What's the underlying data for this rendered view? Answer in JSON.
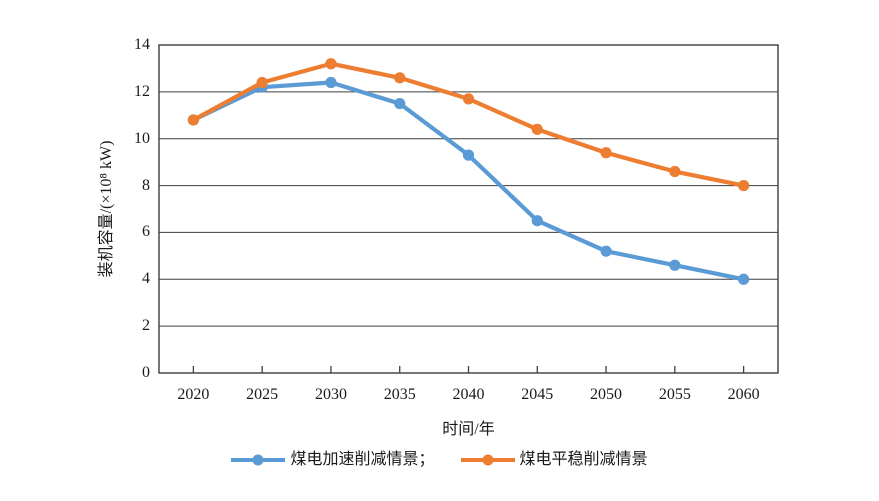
{
  "chart_data": {
    "type": "line",
    "title": "",
    "xlabel": "时间/年",
    "ylabel": "装机容量/(×10⁸ kW)",
    "categories": [
      "2020",
      "2025",
      "2030",
      "2035",
      "2040",
      "2045",
      "2050",
      "2055",
      "2060"
    ],
    "yticks": [
      0,
      2,
      4,
      6,
      8,
      10,
      12,
      14
    ],
    "ylim": [
      0,
      14
    ],
    "grid": "horizontal",
    "legend_position": "bottom",
    "series": [
      {
        "name": "煤电加速削减情景；",
        "color": "#5B9BD5",
        "values": [
          10.8,
          12.2,
          12.4,
          11.5,
          9.3,
          6.5,
          5.2,
          4.6,
          4.0
        ]
      },
      {
        "name": "煤电平稳削减情景",
        "color": "#ED7D31",
        "values": [
          10.8,
          12.4,
          13.2,
          12.6,
          11.7,
          10.4,
          9.4,
          8.6,
          8.0
        ]
      }
    ]
  },
  "colors": {
    "axis": "#3d3d3d",
    "text": "#1a1a1a",
    "background": "#ffffff"
  }
}
